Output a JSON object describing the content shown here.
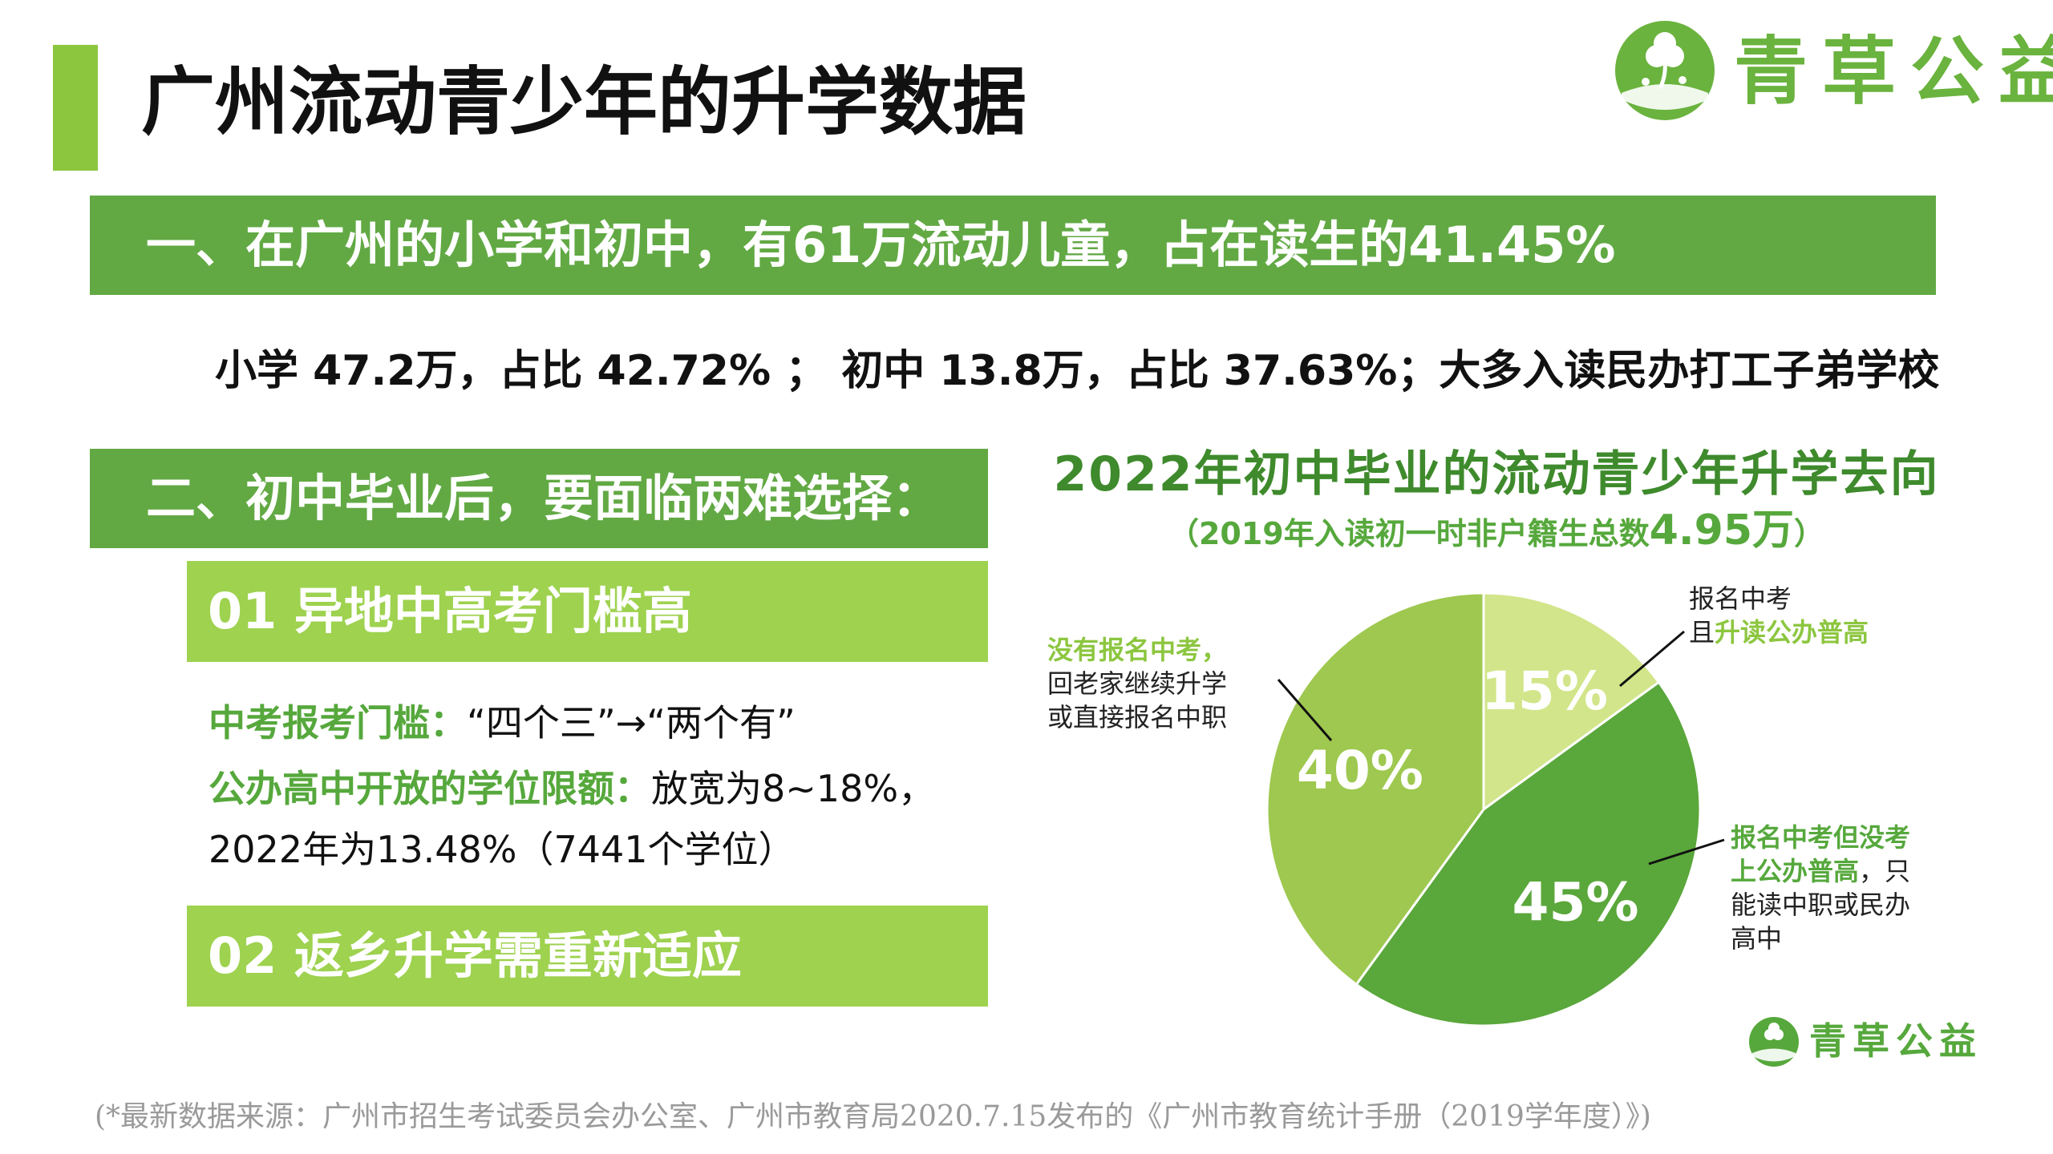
{
  "header": {
    "title": "广州流动青少年的升学数据",
    "brand": "青草公益"
  },
  "section1": {
    "banner": "一、在广州的小学和初中，有61万流动儿童，占在读生的41.45%",
    "stats": "小学 47.2万，占比 42.72% ；  初中 13.8万，占比 37.63%；大多入读民办打工子弟学校"
  },
  "section2": {
    "banner": "二、初中毕业后，要面临两难选择：",
    "item1_title": "01 异地中高考门槛高",
    "line1_label": "中考报考门槛：",
    "line1_text": "“四个三”→“两个有”",
    "line2_label": "公办高中开放的学位限额：",
    "line2_text": "放宽为8~18%，",
    "line3_text": "2022年为13.48%（7441个学位）",
    "item2_title": "02 返乡升学需重新适应"
  },
  "chart_data": {
    "type": "pie",
    "title": "2022年初中毕业的流动青少年升学去向",
    "subtitle_prefix": "（2019年入读初一时非户籍生总数",
    "subtitle_value": "4.95万",
    "subtitle_suffix": "）",
    "slices": [
      {
        "label": "15%",
        "value": 15,
        "color": "#d2e58a",
        "annotation_line1": "报名中考",
        "annotation_line2_prefix": "且",
        "annotation_line2_highlight": "升读公办普高"
      },
      {
        "label": "45%",
        "value": 45,
        "color": "#5aa73b",
        "annotation_line1": "报名中考但没考",
        "annotation_line2_highlight": "上公办普高",
        "annotation_line2_suffix": "，只",
        "annotation_line3": "能读中职或民办",
        "annotation_line4": "高中"
      },
      {
        "label": "40%",
        "value": 40,
        "color": "#9ec84f",
        "annotation_line1": "没有报名中考，",
        "annotation_line2": "回老家继续升学",
        "annotation_line3": "或直接报名中职"
      }
    ]
  },
  "footer": {
    "brand_small": "青草公益",
    "source_note": "(*最新数据来源：广州市招生考试委员会办公室、广州市教育局2020.7.15发布的《广州市教育统计手册（2019学年度）》)"
  },
  "colors": {
    "accent_green": "#62a944",
    "light_green": "#9ed24f",
    "title_bar": "#8cc63f"
  }
}
